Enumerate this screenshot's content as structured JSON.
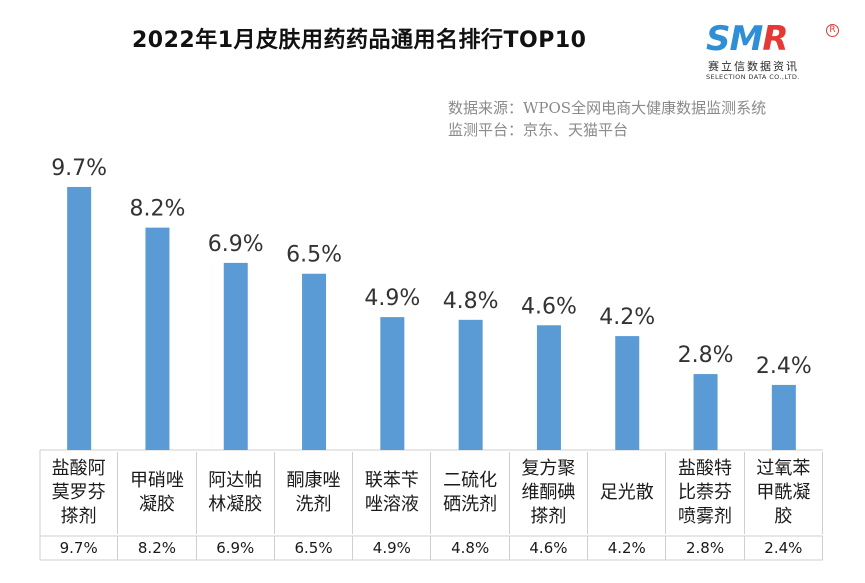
{
  "header": {
    "title": "2022年1月皮肤用药药品通用名排行TOP10",
    "source_line1": "数据来源：WPOS全网电商大健康数据监测系统",
    "source_line2": "监测平台：京东、天猫平台"
  },
  "logo": {
    "s": "S",
    "m": "M",
    "r": "R",
    "registered": "R",
    "cn": "赛立信数据资讯",
    "en": "SELECTION DATA CO.,LTD."
  },
  "colors": {
    "bar": "#5b9bd5",
    "logo_blue": "#2f8fd6",
    "logo_red": "#e53935"
  },
  "chart_data": {
    "type": "bar",
    "title": "2022年1月皮肤用药药品通用名排行TOP10",
    "categories": [
      "盐酸阿\n莫罗芬\n搽剂",
      "甲硝唑\n凝胶",
      "阿达帕\n林凝胶",
      "酮康唑\n洗剂",
      "联苯苄\n唑溶液",
      "二硫化\n硒洗剂",
      "复方聚\n维酮碘\n搽剂",
      "足光散",
      "盐酸特\n比萘芬\n喷雾剂",
      "过氧苯\n甲酰凝\n胶"
    ],
    "values": [
      9.7,
      8.2,
      6.9,
      6.5,
      4.9,
      4.8,
      4.6,
      4.2,
      2.8,
      2.4
    ],
    "labels": [
      "9.7%",
      "8.2%",
      "6.9%",
      "6.5%",
      "4.9%",
      "4.8%",
      "4.6%",
      "4.2%",
      "2.8%",
      "2.4%"
    ],
    "unit": "%",
    "ylim": [
      0,
      11.8
    ],
    "grid": false,
    "legend": "none"
  }
}
